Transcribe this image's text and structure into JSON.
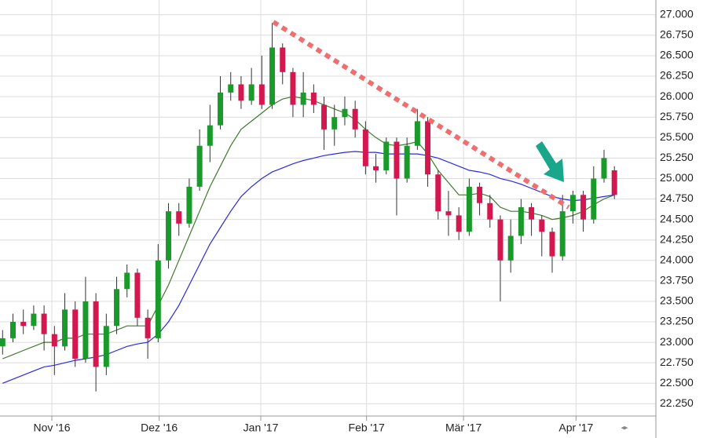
{
  "chart_data": {
    "type": "candlestick",
    "open": [
      22.95,
      23.05,
      23.25,
      23.2,
      23.35,
      23.1,
      22.95,
      23.4,
      22.8,
      23.5,
      22.7,
      23.2,
      23.65,
      23.85,
      23.3,
      23.05,
      24.0,
      24.6,
      24.45,
      24.9,
      25.4,
      25.65,
      26.05,
      26.15,
      25.95,
      26.15,
      25.9,
      26.6,
      26.3,
      25.9,
      26.05,
      25.9,
      25.6,
      25.75,
      25.85,
      25.6,
      25.15,
      25.1,
      25.45,
      25.0,
      25.4,
      25.7,
      25.05,
      24.6,
      24.55,
      24.35,
      24.9,
      24.7,
      24.5,
      24.0,
      24.3,
      24.65,
      24.5,
      24.35,
      24.05,
      24.6,
      24.8,
      24.5,
      25.0,
      25.1
    ],
    "high": [
      23.15,
      23.35,
      23.4,
      23.45,
      23.45,
      23.2,
      23.6,
      23.5,
      23.8,
      23.6,
      23.35,
      23.8,
      23.95,
      23.9,
      23.4,
      24.2,
      24.7,
      24.7,
      25.0,
      25.6,
      25.9,
      26.25,
      26.3,
      26.25,
      26.35,
      26.5,
      26.9,
      26.65,
      26.35,
      26.3,
      26.15,
      26.0,
      25.9,
      26.0,
      25.95,
      25.7,
      25.3,
      25.5,
      25.5,
      25.5,
      25.85,
      25.75,
      25.1,
      24.85,
      24.65,
      25.0,
      24.95,
      24.8,
      24.55,
      24.5,
      24.75,
      24.7,
      24.55,
      24.4,
      24.8,
      24.85,
      24.85,
      25.15,
      25.35,
      25.15
    ],
    "low": [
      22.85,
      23.0,
      23.1,
      23.15,
      22.9,
      22.6,
      22.9,
      22.7,
      22.75,
      22.4,
      22.6,
      23.1,
      23.55,
      23.2,
      22.8,
      23.0,
      23.9,
      24.3,
      24.4,
      24.85,
      25.2,
      25.6,
      25.95,
      25.85,
      25.9,
      25.85,
      25.85,
      26.15,
      25.75,
      25.75,
      25.8,
      25.35,
      25.4,
      25.65,
      25.5,
      25.05,
      24.95,
      25.05,
      24.55,
      24.95,
      25.35,
      24.9,
      24.5,
      24.3,
      24.25,
      24.3,
      24.55,
      24.4,
      23.5,
      23.85,
      24.2,
      24.3,
      24.05,
      23.85,
      24.0,
      24.45,
      24.35,
      24.45,
      24.95,
      24.75
    ],
    "close": [
      23.05,
      23.25,
      23.2,
      23.35,
      23.1,
      22.95,
      23.4,
      22.8,
      23.5,
      22.7,
      23.2,
      23.65,
      23.85,
      23.3,
      23.05,
      24.0,
      24.6,
      24.45,
      24.9,
      25.4,
      25.65,
      26.05,
      26.15,
      25.95,
      26.15,
      25.9,
      26.6,
      26.3,
      25.9,
      26.05,
      25.9,
      25.6,
      25.75,
      25.85,
      25.6,
      25.15,
      25.1,
      25.45,
      25.0,
      25.4,
      25.7,
      25.05,
      24.6,
      24.55,
      24.35,
      24.9,
      24.7,
      24.5,
      24.0,
      24.3,
      24.65,
      24.5,
      24.35,
      24.05,
      24.6,
      24.8,
      24.5,
      25.0,
      25.25,
      24.8
    ],
    "up_color": "#1a9a2a",
    "down_color": "#d3174f",
    "series": [
      {
        "color": "#3d7a2c",
        "values": [
          22.8,
          22.85,
          22.9,
          22.95,
          23.0,
          23.0,
          23.05,
          23.05,
          23.1,
          23.1,
          23.1,
          23.15,
          23.2,
          23.2,
          23.2,
          23.45,
          23.7,
          24.0,
          24.3,
          24.6,
          24.9,
          25.15,
          25.4,
          25.6,
          25.7,
          25.8,
          25.9,
          25.97,
          26.0,
          25.98,
          25.95,
          25.9,
          25.85,
          25.8,
          25.72,
          25.6,
          25.5,
          25.42,
          25.4,
          25.42,
          25.45,
          25.3,
          25.1,
          24.95,
          24.8,
          24.8,
          24.82,
          24.78,
          24.65,
          24.6,
          24.6,
          24.58,
          24.55,
          24.5,
          24.52,
          24.55,
          24.6,
          24.68,
          24.75,
          24.8
        ]
      },
      {
        "color": "#2a2ae0",
        "values": [
          22.5,
          22.55,
          22.6,
          22.65,
          22.7,
          22.72,
          22.75,
          22.78,
          22.8,
          22.82,
          22.85,
          22.9,
          22.95,
          22.98,
          23.0,
          23.1,
          23.25,
          23.45,
          23.7,
          23.95,
          24.2,
          24.4,
          24.6,
          24.78,
          24.9,
          25.0,
          25.08,
          25.13,
          25.18,
          25.22,
          25.25,
          25.28,
          25.3,
          25.32,
          25.33,
          25.32,
          25.32,
          25.3,
          25.3,
          25.3,
          25.3,
          25.28,
          25.25,
          25.2,
          25.15,
          25.1,
          25.08,
          25.05,
          25.0,
          24.97,
          24.93,
          24.88,
          24.83,
          24.78,
          24.75,
          24.73,
          24.74,
          24.76,
          24.78,
          24.8
        ]
      }
    ],
    "xlim": [
      -0.25,
      63
    ],
    "xticks": [
      {
        "value": 4.75,
        "label": "Nov '16"
      },
      {
        "value": 15.1,
        "label": "Dez '16"
      },
      {
        "value": 24.9,
        "label": "Jan '17"
      },
      {
        "value": 35.1,
        "label": "Feb '17"
      },
      {
        "value": 44.45,
        "label": "Mär '17"
      },
      {
        "value": 55.3,
        "label": "Apr '17"
      }
    ],
    "ylim": [
      22.1,
      27.18
    ],
    "yticks": [
      {
        "value": 22.25,
        "label": "22.250"
      },
      {
        "value": 22.5,
        "label": "22.500"
      },
      {
        "value": 22.75,
        "label": "22.750"
      },
      {
        "value": 23,
        "label": "23.000"
      },
      {
        "value": 23.25,
        "label": "23.250"
      },
      {
        "value": 23.5,
        "label": "23.500"
      },
      {
        "value": 23.75,
        "label": "23.750"
      },
      {
        "value": 24,
        "label": "24.000"
      },
      {
        "value": 24.25,
        "label": "24.250"
      },
      {
        "value": 24.5,
        "label": "24.500"
      },
      {
        "value": 24.75,
        "label": "24.750"
      },
      {
        "value": 25,
        "label": "25.000"
      },
      {
        "value": 25.25,
        "label": "25.250"
      },
      {
        "value": 25.5,
        "label": "25.500"
      },
      {
        "value": 25.75,
        "label": "25.750"
      },
      {
        "value": 26,
        "label": "26.000"
      },
      {
        "value": 26.25,
        "label": "26.250"
      },
      {
        "value": 26.5,
        "label": "26.500"
      },
      {
        "value": 26.75,
        "label": "26.750"
      },
      {
        "value": 27,
        "label": "27.000"
      }
    ],
    "grid": true
  }
}
